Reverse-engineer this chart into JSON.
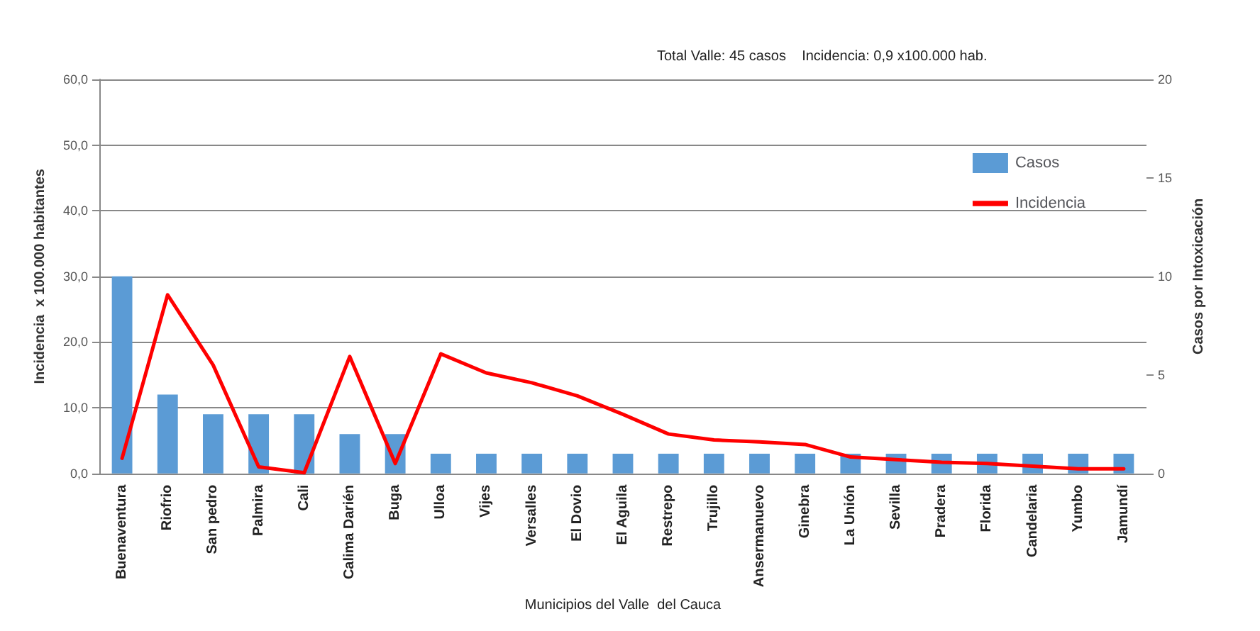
{
  "chart_data": {
    "type": "bar",
    "title": "Total Valle: 45 casos    Incidencia: 0,9 x100.000 hab.",
    "xlabel": "Municipios del Valle  del Cauca",
    "ylabel": "Incidencia  x 100.000 habitantes",
    "y2label": "Casos por Intoxicación",
    "categories": [
      "Buenaventura",
      "Riofrio",
      "San pedro",
      "Palmira",
      "Cali",
      "Calima Darién",
      "Buga",
      "Ulloa",
      "Vijes",
      "Versalles",
      "El Dovio",
      "El Aguila",
      "Restrepo",
      "Trujillo",
      "Ansermanuevo",
      "Ginebra",
      "La Unión",
      "Sevilla",
      "Pradera",
      "Florida",
      "Candelaria",
      "Yumbo",
      "Jamundí"
    ],
    "series": [
      {
        "name": "Casos",
        "axis": "y2",
        "color": "#5b9bd5",
        "values": [
          10,
          4,
          3,
          3,
          3,
          2,
          2,
          1,
          1,
          1,
          1,
          1,
          1,
          1,
          1,
          1,
          1,
          1,
          1,
          1,
          1,
          1,
          1
        ]
      },
      {
        "name": "Incidencia",
        "type": "line",
        "color": "#ff0000",
        "values": [
          2.3,
          27.2,
          16.5,
          1.0,
          0.1,
          17.8,
          1.5,
          18.2,
          15.3,
          13.8,
          11.8,
          9.0,
          6.0,
          5.1,
          4.8,
          4.4,
          2.5,
          2.1,
          1.7,
          1.5,
          1.1,
          0.7,
          0.7
        ]
      }
    ],
    "ylim": [
      0,
      60
    ],
    "yticks": [
      {
        "value": 0,
        "label": "0,0"
      },
      {
        "value": 10,
        "label": "10,0"
      },
      {
        "value": 20,
        "label": "20,0"
      },
      {
        "value": 30,
        "label": "30,0"
      },
      {
        "value": 40,
        "label": "40,0"
      },
      {
        "value": 50,
        "label": "50,0"
      },
      {
        "value": 60,
        "label": "60,0"
      }
    ],
    "y2lim": [
      0,
      20
    ],
    "y2ticks": [
      0,
      5,
      10,
      15,
      20
    ],
    "grid": "y",
    "legend": "right",
    "marker": "none",
    "line_style": "solid"
  }
}
